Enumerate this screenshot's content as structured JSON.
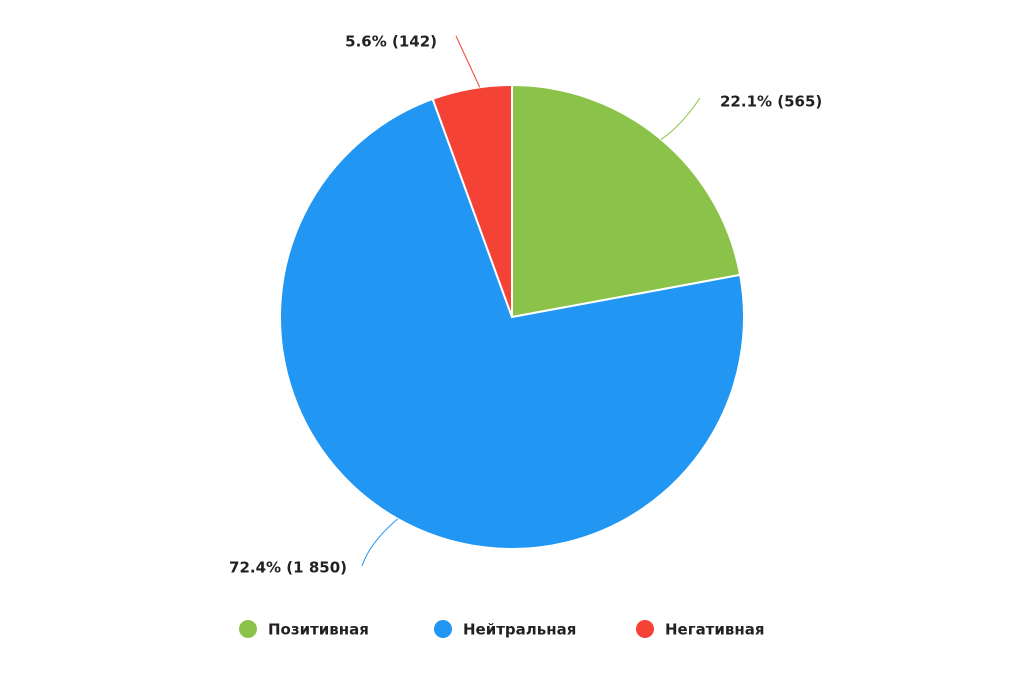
{
  "chart_data": {
    "type": "pie",
    "categories": [
      "Позитивная",
      "Нейтральная",
      "Негативная"
    ],
    "values": [
      565,
      1850,
      142
    ],
    "value_labels": [
      "22.1% (565)",
      "72.4% (1 850)",
      "5.6% (142)"
    ],
    "colors": [
      "#8bc34a",
      "#2196f3",
      "#f44336"
    ],
    "legend": "bottom"
  }
}
